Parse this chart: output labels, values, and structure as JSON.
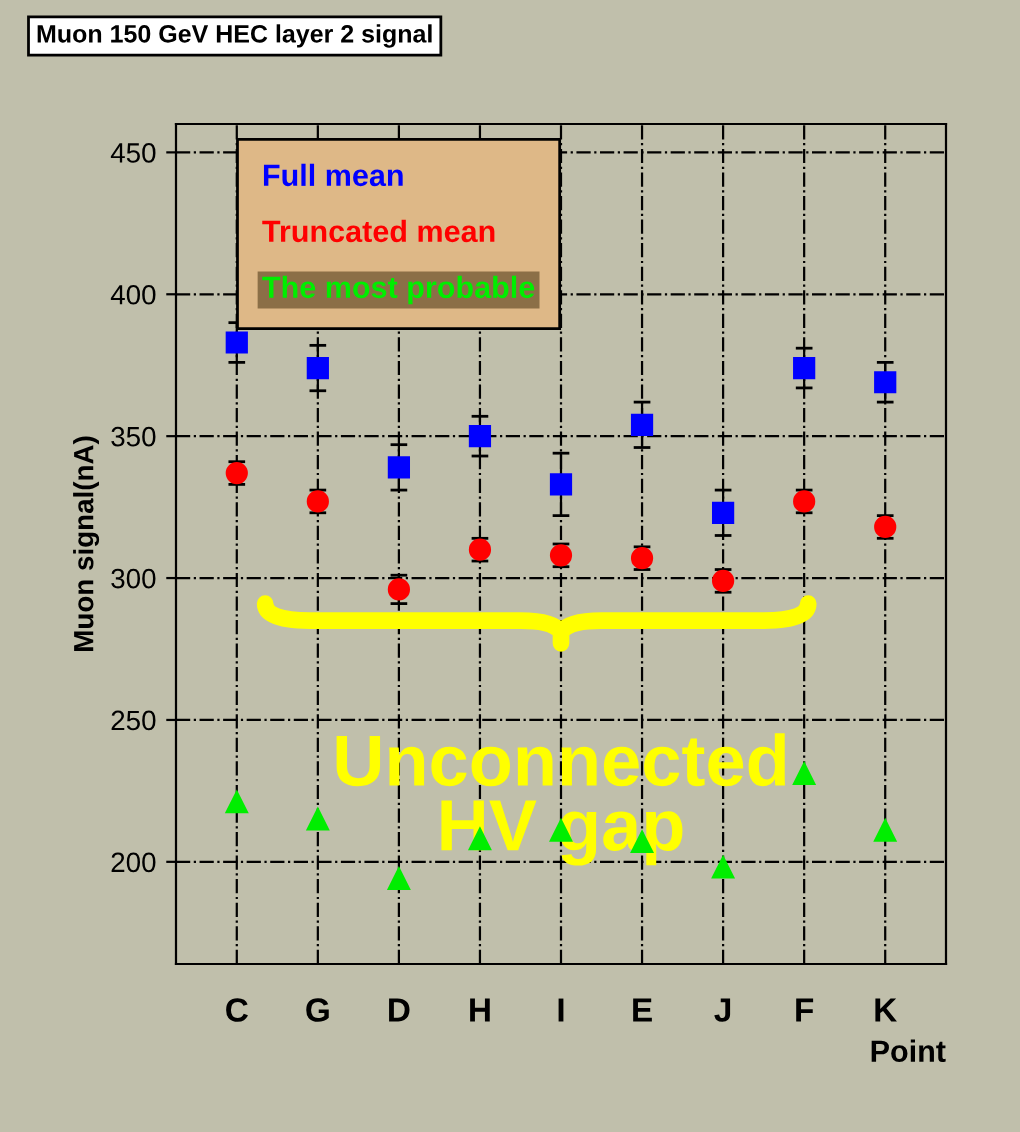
{
  "chart_data": {
    "type": "scatter",
    "title": "Muon 150 GeV HEC layer 2 signal",
    "xlabel": "Point",
    "ylabel": "Muon signal(nA)",
    "categories": [
      "C",
      "G",
      "D",
      "H",
      "I",
      "E",
      "J",
      "F",
      "K"
    ],
    "series": [
      {
        "name": "Full mean",
        "color": "#0000ff",
        "marker": "square",
        "values": [
          383,
          374,
          339,
          350,
          333,
          354,
          323,
          374,
          369
        ],
        "errors": [
          7,
          8,
          8,
          7,
          11,
          8,
          8,
          7,
          7
        ]
      },
      {
        "name": "Truncated mean",
        "color": "#ff0000",
        "marker": "circle",
        "values": [
          337,
          327,
          296,
          310,
          308,
          307,
          299,
          327,
          318
        ],
        "errors": [
          4,
          4,
          5,
          4,
          4,
          4,
          4,
          4,
          4
        ]
      },
      {
        "name": "The most probable",
        "color": "#00ee00",
        "marker": "triangle",
        "values": [
          221,
          215,
          194,
          208,
          211,
          207,
          198,
          231,
          211
        ]
      }
    ],
    "ylim": [
      164,
      460
    ],
    "yticks": [
      200,
      250,
      300,
      350,
      400,
      450
    ],
    "grid": true,
    "legend": "top left",
    "annotations": [
      "Unconnected\nHV gap"
    ]
  }
}
